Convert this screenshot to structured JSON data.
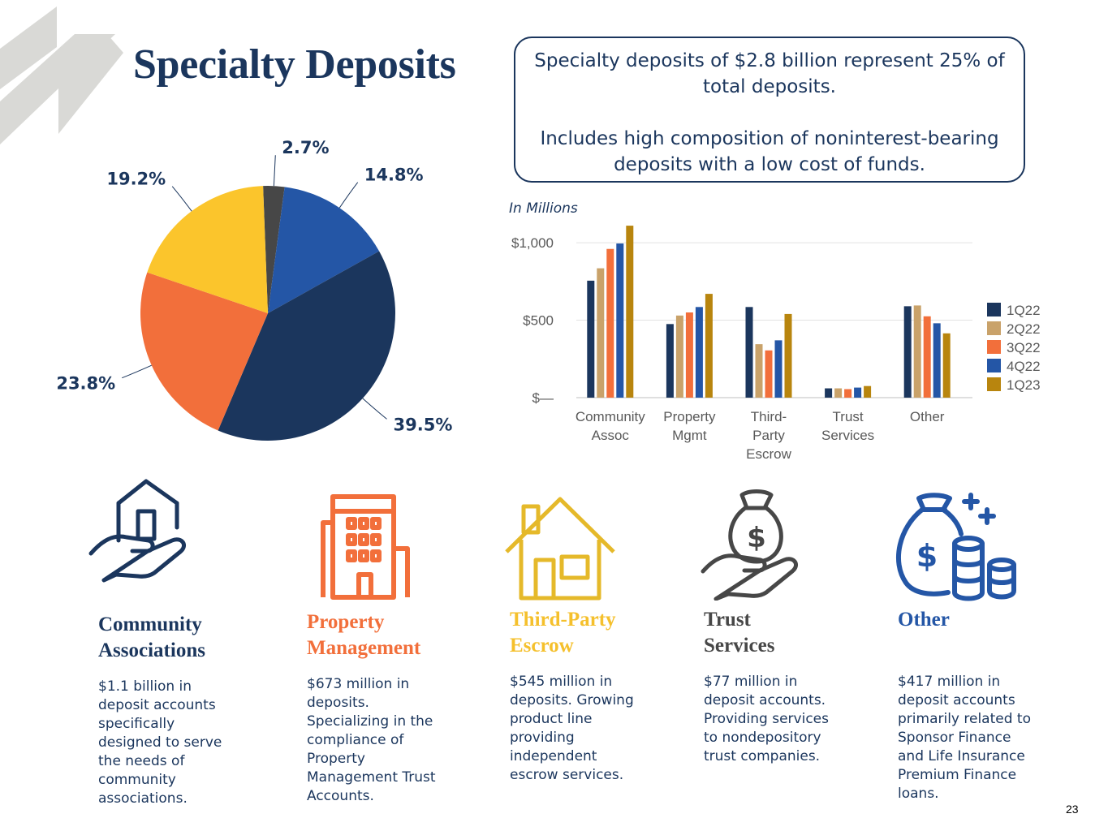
{
  "title": "Specialty Deposits",
  "callout": {
    "line1": "Specialty deposits of $2.8 billion represent 25% of total deposits.",
    "line2": "Includes high composition of noninterest-bearing deposits with a low cost of funds."
  },
  "colors": {
    "navy": "#1b365d",
    "orange": "#f26f3b",
    "gold": "#f5c02c",
    "charcoal": "#474747",
    "blue": "#2456a6",
    "tan": "#c9a26a",
    "bronze": "#b8850e",
    "stripe": "#d9d9d6"
  },
  "chart_data": [
    {
      "type": "pie",
      "slices": [
        {
          "label": "2.7%",
          "value": 2.7,
          "color": "#474747"
        },
        {
          "label": "14.8%",
          "value": 14.8,
          "color": "#2456a6"
        },
        {
          "label": "39.5%",
          "value": 39.5,
          "color": "#1b365d"
        },
        {
          "label": "23.8%",
          "value": 23.8,
          "color": "#f26f3b"
        },
        {
          "label": "19.2%",
          "value": 19.2,
          "color": "#fbc52c"
        }
      ]
    },
    {
      "type": "bar",
      "units": "In Millions",
      "categories": [
        [
          "Community",
          "Assoc"
        ],
        [
          "Property",
          "Mgmt"
        ],
        [
          "Third-",
          "Party",
          "Escrow"
        ],
        [
          "Trust",
          "Services"
        ],
        [
          "Other"
        ]
      ],
      "series": [
        {
          "name": "1Q22",
          "color": "#1b365d",
          "values": [
            755,
            475,
            585,
            60,
            590
          ]
        },
        {
          "name": "2Q22",
          "color": "#c9a26a",
          "values": [
            835,
            530,
            345,
            60,
            595
          ]
        },
        {
          "name": "3Q22",
          "color": "#f26f3b",
          "values": [
            960,
            550,
            305,
            55,
            525
          ]
        },
        {
          "name": "4Q22",
          "color": "#2456a6",
          "values": [
            995,
            585,
            370,
            65,
            480
          ]
        },
        {
          "name": "1Q23",
          "color": "#b8850e",
          "values": [
            1110,
            670,
            540,
            75,
            415
          ]
        }
      ],
      "ylim": [
        0,
        1100
      ],
      "yticks": [
        {
          "value": 0,
          "label": "$—"
        },
        {
          "value": 500,
          "label": "$500"
        },
        {
          "value": 1000,
          "label": "$1,000"
        }
      ],
      "grid": true,
      "legend": "right"
    }
  ],
  "categories": [
    {
      "title": "Community Associations",
      "title_lines": [
        "Community",
        "Associations"
      ],
      "color": "#1b365d",
      "icon": "house-in-hand-icon",
      "desc": "$1.1 billion in deposit accounts specifically designed to serve the needs of community associations.",
      "desc_lines": [
        "$1.1 billion in",
        "deposit accounts",
        "specifically",
        "designed to serve",
        "the needs of",
        "community",
        "associations."
      ]
    },
    {
      "title": "Property Management",
      "title_lines": [
        "Property",
        "Management"
      ],
      "color": "#f26f3b",
      "icon": "office-building-icon",
      "desc": "$673 million in deposits. Specializing in the compliance of Property Management Trust Accounts.",
      "desc_lines": [
        "$673 million in",
        "deposits.",
        "Specializing in the",
        "compliance of",
        "Property",
        "Management Trust",
        "Accounts."
      ]
    },
    {
      "title": "Third-Party Escrow",
      "title_lines": [
        "Third-Party",
        "Escrow"
      ],
      "color": "#f5c02c",
      "icon": "house-icon",
      "desc": "$545 million in deposits. Growing product line providing independent escrow services.",
      "desc_lines": [
        "$545 million in",
        "deposits. Growing",
        "product line",
        "providing",
        "independent",
        "escrow services."
      ]
    },
    {
      "title": "Trust Services",
      "title_lines": [
        "Trust",
        "Services"
      ],
      "color": "#474747",
      "icon": "money-bag-in-hand-icon",
      "desc": "$77 million in deposit accounts. Providing services to nondepository trust companies.",
      "desc_lines": [
        "$77 million in",
        "deposit accounts.",
        "Providing services",
        "to nondepository",
        "trust companies."
      ]
    },
    {
      "title": "Other",
      "title_lines": [
        "Other"
      ],
      "color": "#2456a6",
      "icon": "money-bag-coins-icon",
      "desc": "$417 million in deposit accounts primarily related to Sponsor Finance and Life Insurance Premium Finance loans.",
      "desc_lines": [
        "$417 million in",
        "deposit accounts",
        "primarily related to",
        "Sponsor Finance",
        "and Life Insurance",
        "Premium Finance",
        "loans."
      ]
    }
  ],
  "page_number": "23"
}
